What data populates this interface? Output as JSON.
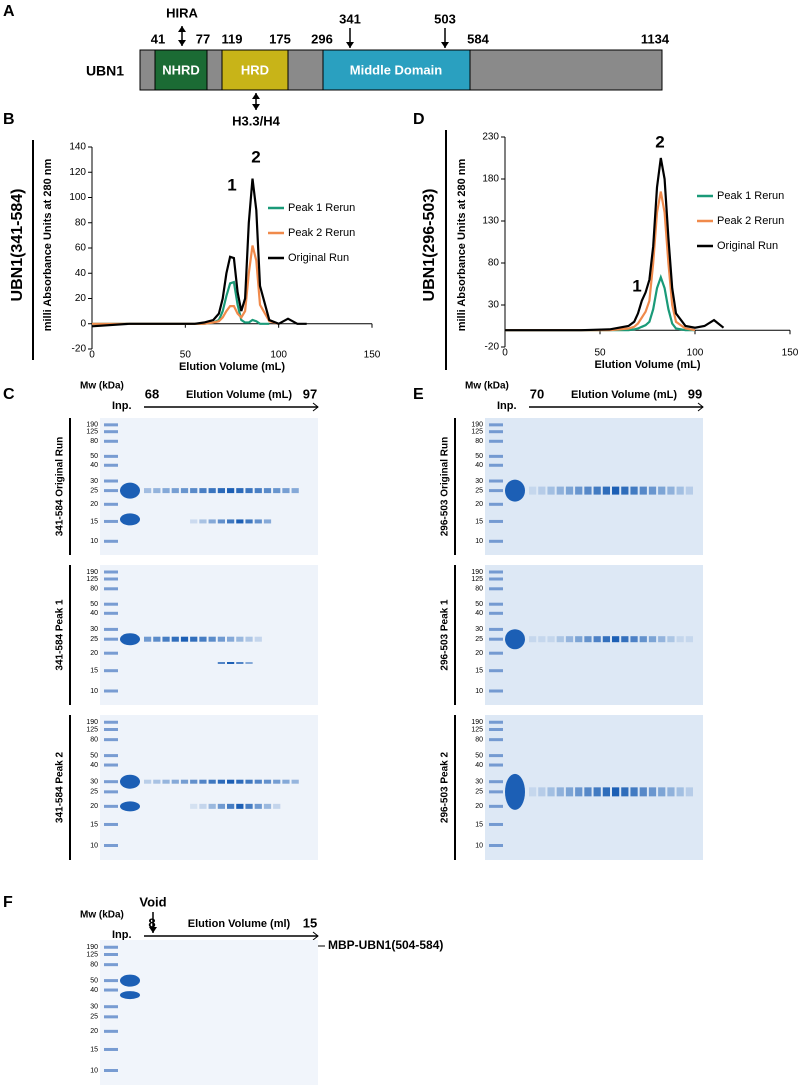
{
  "panel_labels": [
    "A",
    "B",
    "C",
    "D",
    "E",
    "F"
  ],
  "domain_diagram": {
    "protein": "UBN1",
    "domains": [
      "NHRD",
      "HRD",
      "Middle Domain"
    ],
    "positions": [
      "41",
      "77",
      "119",
      "175",
      "296",
      "341",
      "503",
      "584",
      "1134"
    ],
    "partners": [
      "HIRA",
      "H3.3/H4"
    ]
  },
  "chart_data": [
    {
      "type": "line",
      "side_label": "UBN1(341-584)",
      "y_label": "milli Absorbance Units at 280 nm",
      "x_label": "Elution Volume (mL)",
      "x": [
        0,
        20,
        40,
        55,
        60,
        65,
        68,
        70,
        72,
        74,
        76,
        78,
        80,
        82,
        84,
        86,
        88,
        90,
        95,
        100,
        105,
        110,
        115
      ],
      "series": [
        {
          "name": "Peak 1 Rerun",
          "color": "#1a9a78",
          "values": [
            0,
            0,
            0,
            0,
            0,
            1,
            3,
            10,
            22,
            32,
            33,
            15,
            3,
            1,
            1,
            3,
            2,
            0,
            0,
            null,
            null,
            null,
            null
          ]
        },
        {
          "name": "Peak 2 Rerun",
          "color": "#f08a4b",
          "values": [
            0,
            0,
            0,
            0,
            0,
            1,
            2,
            5,
            10,
            14,
            14,
            8,
            5,
            10,
            40,
            62,
            50,
            15,
            2,
            0,
            null,
            null,
            null
          ]
        },
        {
          "name": "Original Run",
          "color": "#000000",
          "values": [
            -2,
            0,
            0,
            0,
            1,
            3,
            8,
            20,
            40,
            53,
            52,
            25,
            10,
            20,
            80,
            115,
            90,
            30,
            3,
            0,
            4,
            0,
            0
          ]
        }
      ],
      "xlim": [
        0,
        150
      ],
      "ylim": [
        -20,
        140
      ],
      "xticks": [
        0,
        50,
        100,
        150
      ],
      "yticks": [
        -20,
        0,
        20,
        40,
        60,
        80,
        100,
        120,
        140
      ],
      "annotations": [
        "1",
        "2"
      ]
    },
    {
      "type": "line",
      "side_label": "UBN1(296-503)",
      "y_label": "milli Absorbance Units at 280 nm",
      "x_label": "Elution Volume (mL)",
      "x": [
        0,
        20,
        40,
        55,
        60,
        65,
        68,
        70,
        72,
        74,
        76,
        78,
        80,
        82,
        84,
        86,
        88,
        90,
        95,
        100,
        105,
        110,
        115
      ],
      "series": [
        {
          "name": "Peak 1 Rerun",
          "color": "#1a9a78",
          "values": [
            0,
            0,
            0,
            0,
            0,
            0,
            1,
            2,
            4,
            6,
            10,
            25,
            50,
            63,
            50,
            25,
            8,
            2,
            0,
            0,
            null,
            null,
            null
          ]
        },
        {
          "name": "Peak 2 Rerun",
          "color": "#f08a4b",
          "values": [
            0,
            0,
            0,
            0,
            1,
            2,
            4,
            8,
            15,
            22,
            35,
            80,
            140,
            165,
            140,
            80,
            30,
            10,
            2,
            0,
            null,
            null,
            null
          ]
        },
        {
          "name": "Original Run",
          "color": "#000000",
          "values": [
            0,
            0,
            0,
            1,
            3,
            5,
            10,
            20,
            35,
            45,
            60,
            100,
            170,
            205,
            180,
            110,
            50,
            20,
            5,
            3,
            5,
            12,
            3
          ]
        }
      ],
      "xlim": [
        0,
        150
      ],
      "ylim": [
        -20,
        230
      ],
      "xticks": [
        0,
        50,
        100,
        150
      ],
      "yticks": [
        -20,
        30,
        80,
        130,
        180,
        230
      ],
      "annotations": [
        "1",
        "2"
      ]
    }
  ],
  "gels": {
    "C": {
      "mw_label": "Mw (kDa)",
      "input_label": "Inp.",
      "start": "68",
      "axis_label": "Elution Volume (mL)",
      "end": "97",
      "markers": [
        "190",
        "125",
        "80",
        "50",
        "40",
        "30",
        "25",
        "20",
        "15",
        "10"
      ],
      "lanes": [
        "341-584 Original Run",
        "341-584 Peak 1",
        "341-584 Peak 2"
      ]
    },
    "E": {
      "mw_label": "Mw (kDa)",
      "input_label": "Inp.",
      "start": "70",
      "axis_label": "Elution Volume (mL)",
      "end": "99",
      "markers": [
        "190",
        "125",
        "80",
        "50",
        "40",
        "30",
        "25",
        "20",
        "15",
        "10"
      ],
      "lanes": [
        "296-503 Original Run",
        "296-503 Peak 1",
        "296-503 Peak 2"
      ]
    },
    "F": {
      "mw_label": "Mw (kDa)",
      "input_label": "Inp.",
      "start": "8",
      "void_label": "Void",
      "axis_label": "Elution Volume (ml)",
      "end": "15",
      "markers": [
        "190",
        "125",
        "80",
        "50",
        "40",
        "30",
        "25",
        "20",
        "15",
        "10"
      ],
      "band_label": "MBP-UBN1(504-584)"
    }
  }
}
